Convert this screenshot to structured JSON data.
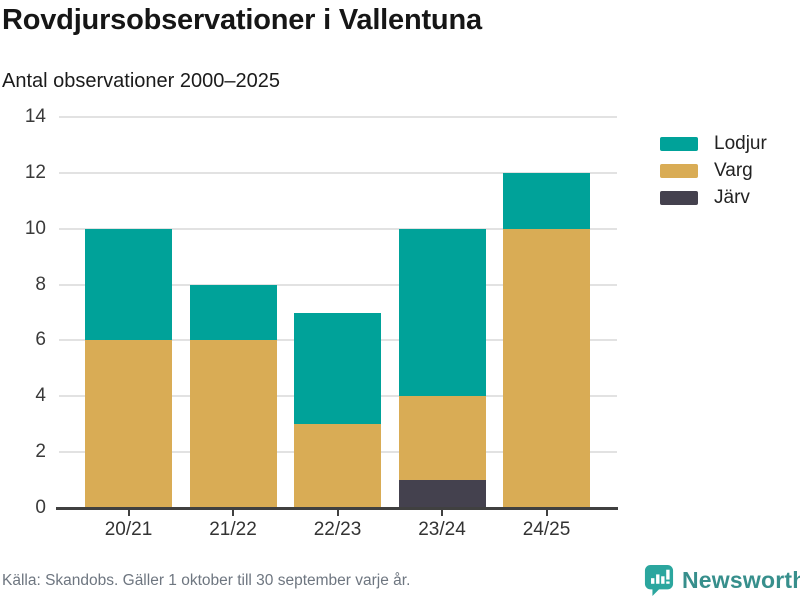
{
  "header": {
    "title": "Rovdjursobservationer i Vallentuna",
    "subtitle": "Antal observationer 2000–2025"
  },
  "footer": {
    "source": "Källa: Skandobs. Gäller 1 oktober till 30 september varje år.",
    "brand": "Newsworthy"
  },
  "colors": {
    "lodjur": "#00A299",
    "varg": "#D9AC55",
    "jarv": "#44414E",
    "axis": "#404040",
    "grid": "#e2e2e2",
    "tick_label": "#3a3a3a",
    "footer_text": "#6e7680",
    "brand_icon": "#2BA69E",
    "brand_text": "#378F8C"
  },
  "chart_data": {
    "type": "bar",
    "stacked": true,
    "title": "Rovdjursobservationer i Vallentuna",
    "subtitle": "Antal observationer 2000–2025",
    "categories": [
      "20/21",
      "21/22",
      "22/23",
      "23/24",
      "24/25"
    ],
    "series": [
      {
        "name": "Järv",
        "color_key": "jarv",
        "values": [
          0,
          0,
          0,
          1,
          0
        ]
      },
      {
        "name": "Varg",
        "color_key": "varg",
        "values": [
          6,
          6,
          3,
          3,
          10
        ]
      },
      {
        "name": "Lodjur",
        "color_key": "lodjur",
        "values": [
          4,
          2,
          4,
          6,
          2
        ]
      }
    ],
    "totals": [
      10,
      8,
      7,
      10,
      12
    ],
    "legend": [
      {
        "label": "Lodjur",
        "color_key": "lodjur"
      },
      {
        "label": "Varg",
        "color_key": "varg"
      },
      {
        "label": "Järv",
        "color_key": "jarv"
      }
    ],
    "legend_position": "right",
    "grid": true,
    "xlabel": "",
    "ylabel": "",
    "ylim": [
      0,
      14
    ],
    "yticks": [
      0,
      2,
      4,
      6,
      8,
      10,
      12,
      14
    ]
  }
}
